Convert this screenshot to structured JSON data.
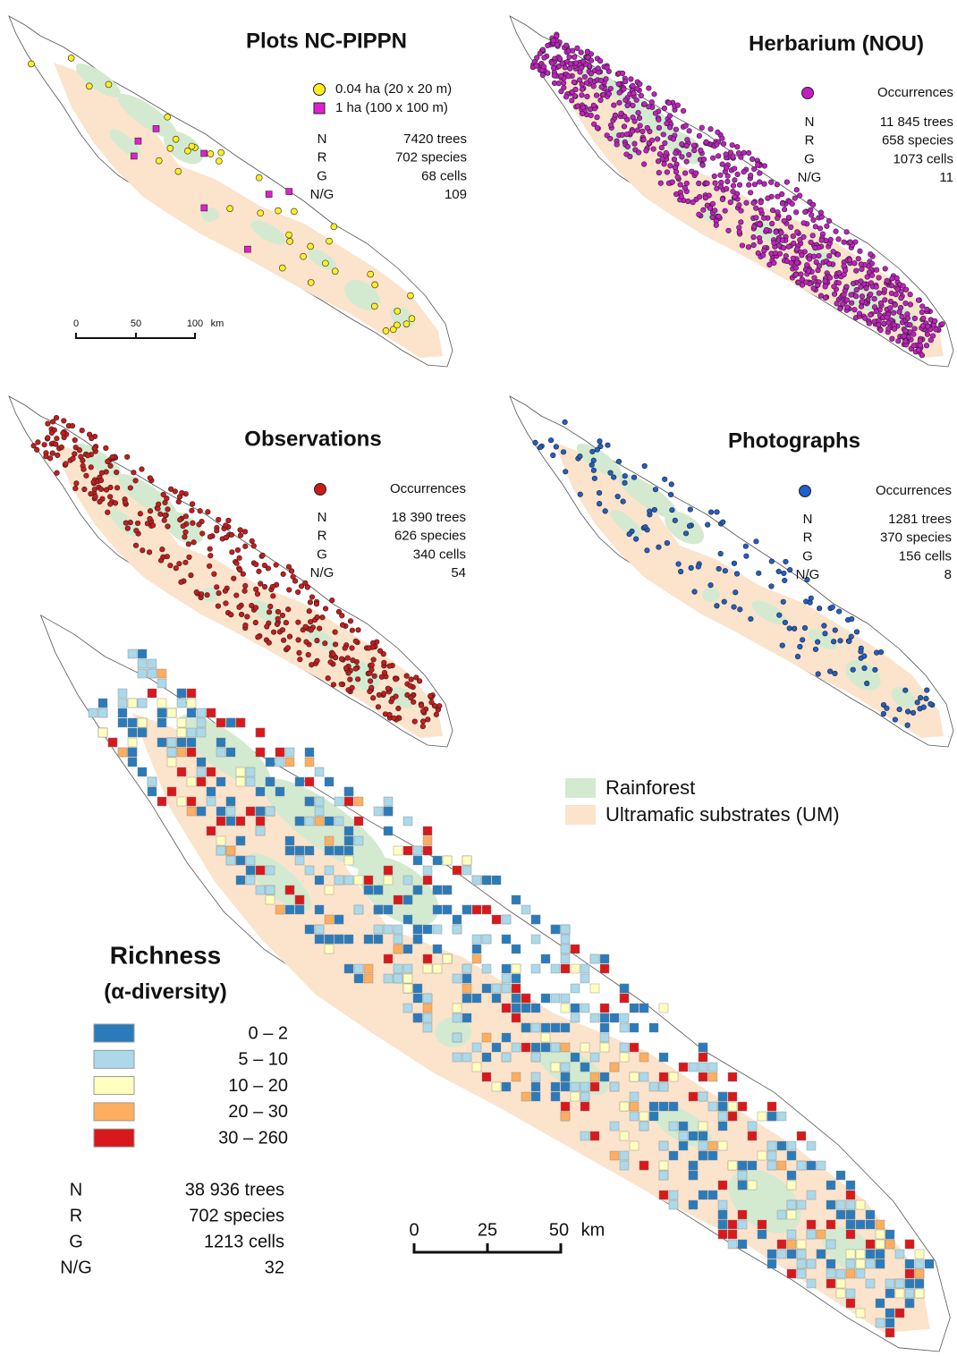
{
  "panels": [
    {
      "title": "Plots NC-PIPPN",
      "legend": [
        "0.04 ha (20 x 20 m)",
        "1 ha (100 x 100 m)"
      ],
      "stats": [
        [
          "N",
          "7420 trees"
        ],
        [
          "R",
          "702 species"
        ],
        [
          "G",
          "68 cells"
        ],
        [
          "N/G",
          "109"
        ]
      ],
      "scale_bar": [
        "0",
        "50",
        "100",
        "km"
      ]
    },
    {
      "title": "Herbarium (NOU)",
      "legend": [
        "Occurrences"
      ],
      "stats": [
        [
          "N",
          "11 845 trees"
        ],
        [
          "R",
          "658 species"
        ],
        [
          "G",
          "1073 cells"
        ],
        [
          "N/G",
          "11"
        ]
      ]
    },
    {
      "title": "Observations",
      "legend": [
        "Occurrences"
      ],
      "stats": [
        [
          "N",
          "18 390 trees"
        ],
        [
          "R",
          "626 species"
        ],
        [
          "G",
          "340 cells"
        ],
        [
          "N/G",
          "54"
        ]
      ]
    },
    {
      "title": "Photographs",
      "legend": [
        "Occurrences"
      ],
      "stats": [
        [
          "N",
          "1281 trees"
        ],
        [
          "R",
          "370 species"
        ],
        [
          "G",
          "156 cells"
        ],
        [
          "N/G",
          "8"
        ]
      ]
    }
  ],
  "habitat_legend": [
    "Rainforest",
    "Ultramafic substrates (UM)"
  ],
  "richness": {
    "title": "Richness",
    "subtitle": "(α-diversity)",
    "classes": [
      "0 – 2",
      "5 – 10",
      "10 – 20",
      "20 – 30",
      "30 – 260"
    ],
    "stats": [
      [
        "N",
        "38 936 trees"
      ],
      [
        "R",
        "702 species"
      ],
      [
        "G",
        "1213 cells"
      ],
      [
        "N/G",
        "32"
      ]
    ],
    "scale_bar": [
      "0",
      "25",
      "50",
      "km"
    ]
  }
}
